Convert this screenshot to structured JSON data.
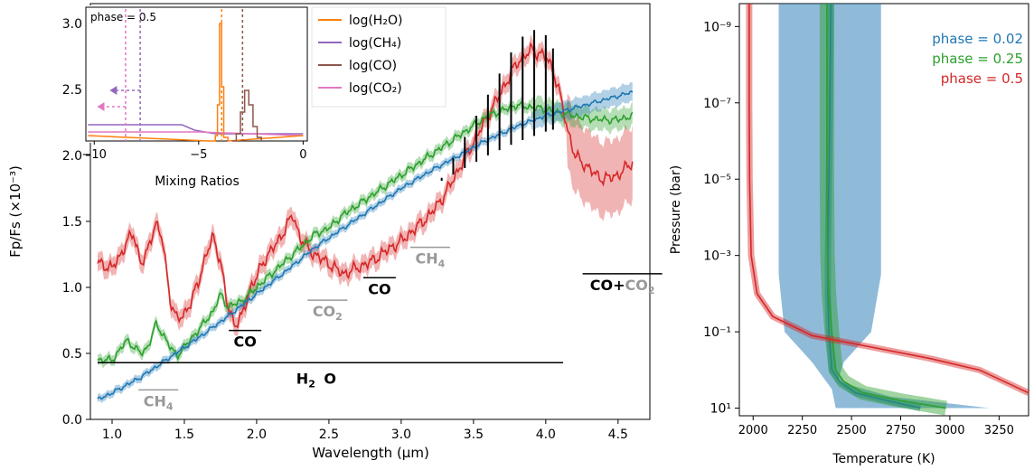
{
  "chart_data": [
    {
      "type": "line",
      "xlabel": "Wavelength (μm)",
      "ylabel": "Fp/Fs (×10⁻³)",
      "xlim": [
        0.85,
        4.72
      ],
      "ylim": [
        0.0,
        3.15
      ],
      "xticks": [
        "1.0",
        "1.5",
        "2.0",
        "2.5",
        "3.0",
        "3.5",
        "4.0",
        "4.5"
      ],
      "yticks": [
        "0.0",
        "0.5",
        "1.0",
        "1.5",
        "2.0",
        "2.5",
        "3.0"
      ],
      "series": [
        {
          "phase_color": "#d62728",
          "x": [
            0.9,
            1.0,
            1.05,
            1.1,
            1.15,
            1.2,
            1.25,
            1.3,
            1.35,
            1.4,
            1.45,
            1.5,
            1.55,
            1.6,
            1.65,
            1.7,
            1.75,
            1.8,
            1.85,
            1.9,
            1.95,
            2.0,
            2.05,
            2.1,
            2.15,
            2.2,
            2.25,
            2.3,
            2.35,
            2.4,
            2.5,
            2.6,
            2.7,
            2.8,
            2.9,
            3.0,
            3.1,
            3.2,
            3.3,
            3.4,
            3.5,
            3.6,
            3.7,
            3.8,
            3.9,
            4.0,
            4.05,
            4.1,
            4.15,
            4.2,
            4.25,
            4.3,
            4.35,
            4.4,
            4.5,
            4.6
          ],
          "y": [
            1.18,
            1.15,
            1.22,
            1.35,
            1.4,
            1.18,
            1.28,
            1.5,
            1.35,
            0.92,
            0.75,
            0.8,
            0.9,
            1.05,
            1.25,
            1.38,
            1.2,
            0.85,
            0.72,
            0.78,
            0.98,
            1.08,
            1.2,
            1.28,
            1.35,
            1.45,
            1.55,
            1.38,
            1.3,
            1.25,
            1.18,
            1.1,
            1.15,
            1.2,
            1.28,
            1.35,
            1.45,
            1.55,
            1.7,
            1.9,
            2.1,
            2.3,
            2.5,
            2.7,
            2.8,
            2.75,
            2.65,
            2.45,
            2.2,
            2.0,
            1.95,
            1.9,
            1.85,
            1.82,
            1.85,
            1.95
          ]
        },
        {
          "phase_color": "#2ca02c",
          "x": [
            0.9,
            1.0,
            1.05,
            1.1,
            1.15,
            1.2,
            1.25,
            1.3,
            1.35,
            1.4,
            1.45,
            1.5,
            1.6,
            1.7,
            1.75,
            1.8,
            1.9,
            2.0,
            2.1,
            2.2,
            2.3,
            2.4,
            2.5,
            2.6,
            2.8,
            3.0,
            3.2,
            3.4,
            3.6,
            3.8,
            4.0,
            4.1,
            4.2,
            4.3,
            4.4,
            4.5,
            4.6
          ],
          "y": [
            0.45,
            0.45,
            0.52,
            0.6,
            0.55,
            0.5,
            0.55,
            0.72,
            0.65,
            0.55,
            0.48,
            0.55,
            0.68,
            0.82,
            0.95,
            0.85,
            0.9,
            1.0,
            1.1,
            1.2,
            1.3,
            1.4,
            1.45,
            1.55,
            1.7,
            1.85,
            2.0,
            2.15,
            2.3,
            2.38,
            2.35,
            2.32,
            2.3,
            2.28,
            2.27,
            2.27,
            2.3
          ]
        },
        {
          "phase_color": "#1f77b4",
          "x": [
            0.9,
            1.0,
            1.2,
            1.4,
            1.6,
            1.8,
            2.0,
            2.2,
            2.4,
            2.6,
            2.8,
            3.0,
            3.2,
            3.4,
            3.6,
            3.8,
            4.0,
            4.2,
            4.4,
            4.6
          ],
          "y": [
            0.15,
            0.2,
            0.32,
            0.47,
            0.62,
            0.78,
            0.95,
            1.12,
            1.3,
            1.45,
            1.6,
            1.75,
            1.88,
            2.0,
            2.12,
            2.22,
            2.3,
            2.36,
            2.42,
            2.48
          ]
        }
      ],
      "annotations": [
        {
          "text": "CO",
          "x": 1.92,
          "y": 0.62,
          "color": "#000000"
        },
        {
          "text": "CO",
          "x": 2.85,
          "y": 1.01,
          "color": "#000000"
        },
        {
          "text": "CO",
          "x": 4.43,
          "y": 1.03,
          "color": "#000000"
        },
        {
          "text": "+",
          "x": 4.55,
          "y": 1.03,
          "color": "#000000"
        },
        {
          "text": "H",
          "x": 2.38,
          "y": 0.33,
          "color": "#000000"
        },
        {
          "text": "CH",
          "x": 3.2,
          "y": 1.24,
          "color": "#999999"
        },
        {
          "text": "CO",
          "x": 2.49,
          "y": 0.82,
          "color": "#999999"
        },
        {
          "text": "CH",
          "x": 1.3,
          "y": 0.13,
          "color": "#999999"
        },
        {
          "text": "CO",
          "x": 4.69,
          "y": 1.03,
          "color": "#999999"
        }
      ]
    },
    {
      "type": "line",
      "title": "inset",
      "xlabel": "Mixing Ratios",
      "xticks": [
        "−10",
        "−5",
        "0"
      ],
      "xlim": [
        -10.4,
        0.2
      ],
      "ylim": [
        0,
        1
      ],
      "header": "phase = 0.5",
      "legend": [
        "log(H₂O)",
        "log(CH₄)",
        "log(CO)",
        "log(CO₂)"
      ],
      "legend_colors": [
        "#ff7f0e",
        "#9467bd",
        "#8c564b",
        "#e377c2"
      ]
    },
    {
      "type": "line",
      "xlabel": "Temperature (K)",
      "ylabel": "Pressure (bar)",
      "xticks": [
        "2000",
        "2250",
        "2500",
        "2750",
        "3000",
        "3250"
      ],
      "xlim": [
        1930,
        3400
      ],
      "ylim_log10": [
        1.2,
        -9.6
      ],
      "ytick_labels": [
        "10⁻⁹",
        "10⁻⁷",
        "10⁻⁵",
        "10⁻³",
        "10⁻¹",
        "10¹"
      ],
      "legend": [
        "phase = 0.02",
        "phase = 0.25",
        "phase = 0.5"
      ],
      "legend_colors": [
        "#1f77b4",
        "#2ca02c",
        "#d62728"
      ],
      "series": [
        {
          "name": "phase = 0.02",
          "color": "#1f77b4",
          "T": [
            2395,
            2390,
            2385,
            2380,
            2380,
            2385,
            2400,
            2440,
            2520,
            2680,
            2850
          ],
          "logP": [
            -9.6,
            -7,
            -5,
            -3,
            -2,
            -1,
            0,
            0.3,
            0.6,
            0.8,
            1.0
          ]
        },
        {
          "name": "phase = 0.25",
          "color": "#2ca02c",
          "T": [
            2375,
            2375,
            2375,
            2378,
            2385,
            2400,
            2420,
            2460,
            2560,
            2750,
            2980
          ],
          "logP": [
            -9.6,
            -7,
            -5,
            -3,
            -2,
            -1,
            0,
            0.3,
            0.6,
            0.8,
            1.0
          ]
        },
        {
          "name": "phase = 0.5",
          "color": "#d62728",
          "T": [
            1980,
            1980,
            1982,
            1990,
            2020,
            2100,
            2300,
            2600,
            2900,
            3150,
            3400
          ],
          "logP": [
            -9.6,
            -7,
            -5,
            -3,
            -2,
            -1.4,
            -0.9,
            -0.6,
            -0.3,
            0.0,
            0.6
          ]
        }
      ]
    }
  ],
  "labels": {
    "h2o_sub": "2",
    "ch4_sub": "4",
    "co2_sub": "2",
    "o": "O"
  }
}
